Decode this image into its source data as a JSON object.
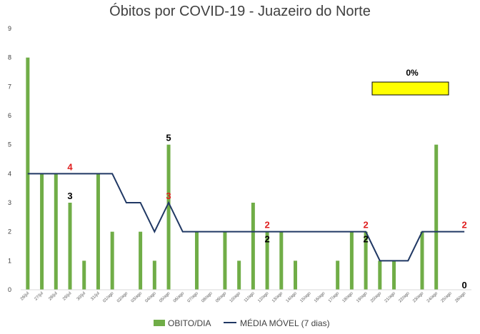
{
  "chart_data": {
    "type": "bar",
    "title": "Óbitos por COVID-19 - Juazeiro do Norte",
    "categories": [
      "26/jul",
      "27/jul",
      "28/jul",
      "29/jul",
      "30/jul",
      "31/jul",
      "01/ago",
      "02/ago",
      "03/ago",
      "04/ago",
      "05/ago",
      "06/ago",
      "07/ago",
      "08/ago",
      "09/ago",
      "10/ago",
      "11/ago",
      "12/ago",
      "13/ago",
      "14/ago",
      "15/ago",
      "16/ago",
      "17/ago",
      "18/ago",
      "19/ago",
      "20/ago",
      "21/ago",
      "22/ago",
      "23/ago",
      "24/ago",
      "25/ago",
      "26/ago"
    ],
    "series": [
      {
        "name": "OBITO/DIA",
        "type": "bar",
        "color": "#70ad47",
        "values": [
          8,
          4,
          4,
          3,
          1,
          4,
          2,
          0,
          2,
          1,
          5,
          0,
          2,
          0,
          2,
          1,
          3,
          2,
          2,
          1,
          0,
          0,
          1,
          2,
          2,
          1,
          1,
          0,
          2,
          5,
          0,
          0
        ]
      },
      {
        "name": "MÉDIA MÓVEL (7 dias)",
        "type": "line",
        "color": "#203864",
        "values": [
          4,
          4,
          4,
          4,
          4,
          4,
          4,
          3,
          3,
          2,
          3,
          2,
          2,
          2,
          2,
          2,
          2,
          2,
          2,
          2,
          2,
          2,
          2,
          2,
          2,
          1,
          1,
          1,
          2,
          2,
          2,
          2
        ]
      }
    ],
    "ylim": [
      0,
      9
    ],
    "yticks": [
      "0",
      "1",
      "2",
      "3",
      "4",
      "5",
      "6",
      "7",
      "8",
      "9"
    ],
    "grid": false,
    "legend_position": "bottom",
    "annotations": [
      {
        "text": "4",
        "color": "red",
        "index": 3,
        "y": 4
      },
      {
        "text": "3",
        "color": "black",
        "index": 3,
        "y": 3
      },
      {
        "text": "5",
        "color": "black",
        "index": 10,
        "y": 5
      },
      {
        "text": "3",
        "color": "red",
        "index": 10,
        "y": 3
      },
      {
        "text": "2",
        "color": "red",
        "index": 17,
        "y": 2
      },
      {
        "text": "2",
        "color": "black",
        "index": 17,
        "y": 2
      },
      {
        "text": "2",
        "color": "red",
        "index": 24,
        "y": 2
      },
      {
        "text": "2",
        "color": "black",
        "index": 24,
        "y": 2
      },
      {
        "text": "2",
        "color": "red",
        "index": 31,
        "y": 2
      },
      {
        "text": "0",
        "color": "black",
        "index": 31,
        "y": 0
      }
    ],
    "highlight_box": {
      "label": "0%",
      "color": "#ffff00"
    }
  }
}
